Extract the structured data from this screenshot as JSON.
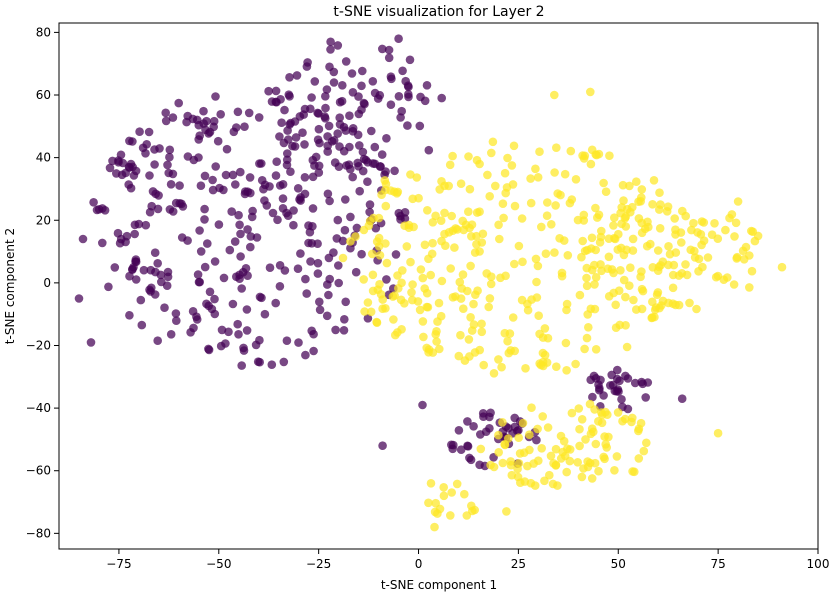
{
  "chart_data": {
    "type": "scatter",
    "title": "t-SNE visualization for Layer 2",
    "xlabel": "t-SNE component 1",
    "ylabel": "t-SNE component 2",
    "xlim": [
      -90,
      100
    ],
    "ylim": [
      -85,
      83
    ],
    "xticks": [
      -75,
      -50,
      -25,
      0,
      25,
      50,
      75,
      100
    ],
    "yticks": [
      -80,
      -60,
      -40,
      -20,
      0,
      20,
      40,
      60,
      80
    ],
    "grid": false,
    "legend": null,
    "colors": {
      "purple": "#440154",
      "yellow": "#fde725"
    },
    "clusters": [
      {
        "color": "purple",
        "type": "ellipse",
        "cx": -42,
        "cy": 18,
        "rx": 40,
        "ry": 45,
        "n": 360,
        "seed": 11
      },
      {
        "color": "purple",
        "type": "ellipse",
        "cx": -15,
        "cy": 55,
        "rx": 22,
        "ry": 22,
        "n": 90,
        "seed": 12
      },
      {
        "color": "purple",
        "type": "ellipse",
        "cx": 19,
        "cy": -50,
        "rx": 12,
        "ry": 9,
        "n": 40,
        "seed": 13
      },
      {
        "color": "purple",
        "type": "ellipse",
        "cx": 50,
        "cy": -34,
        "rx": 8,
        "ry": 7,
        "n": 30,
        "seed": 14
      },
      {
        "color": "yellow",
        "type": "ellipse",
        "cx": 25,
        "cy": 8,
        "rx": 45,
        "ry": 38,
        "n": 330,
        "seed": 21
      },
      {
        "color": "yellow",
        "type": "ellipse",
        "cx": 64,
        "cy": 8,
        "rx": 24,
        "ry": 18,
        "n": 110,
        "seed": 22
      },
      {
        "color": "yellow",
        "type": "ellipse",
        "cx": 37,
        "cy": -52,
        "rx": 22,
        "ry": 14,
        "n": 100,
        "seed": 23
      },
      {
        "color": "yellow",
        "type": "ellipse",
        "cx": 7,
        "cy": -70,
        "rx": 8,
        "ry": 7,
        "n": 16,
        "seed": 24
      }
    ],
    "points": [
      {
        "x": -85,
        "y": -5,
        "c": "purple"
      },
      {
        "x": -84,
        "y": 14,
        "c": "purple"
      },
      {
        "x": -82,
        "y": -19,
        "c": "purple"
      },
      {
        "x": -22,
        "y": 77,
        "c": "purple"
      },
      {
        "x": -5,
        "y": 78,
        "c": "purple"
      },
      {
        "x": 91,
        "y": 5,
        "c": "yellow"
      },
      {
        "x": 85,
        "y": 15,
        "c": "yellow"
      },
      {
        "x": 80,
        "y": 26,
        "c": "yellow"
      },
      {
        "x": 43,
        "y": 61,
        "c": "yellow"
      },
      {
        "x": 34,
        "y": 60,
        "c": "yellow"
      },
      {
        "x": 4,
        "y": -78,
        "c": "yellow"
      },
      {
        "x": 22,
        "y": -73,
        "c": "yellow"
      },
      {
        "x": 75,
        "y": -48,
        "c": "yellow"
      },
      {
        "x": 66,
        "y": -37,
        "c": "purple"
      },
      {
        "x": -9,
        "y": -52,
        "c": "purple"
      },
      {
        "x": 1,
        "y": -39,
        "c": "purple"
      }
    ]
  }
}
